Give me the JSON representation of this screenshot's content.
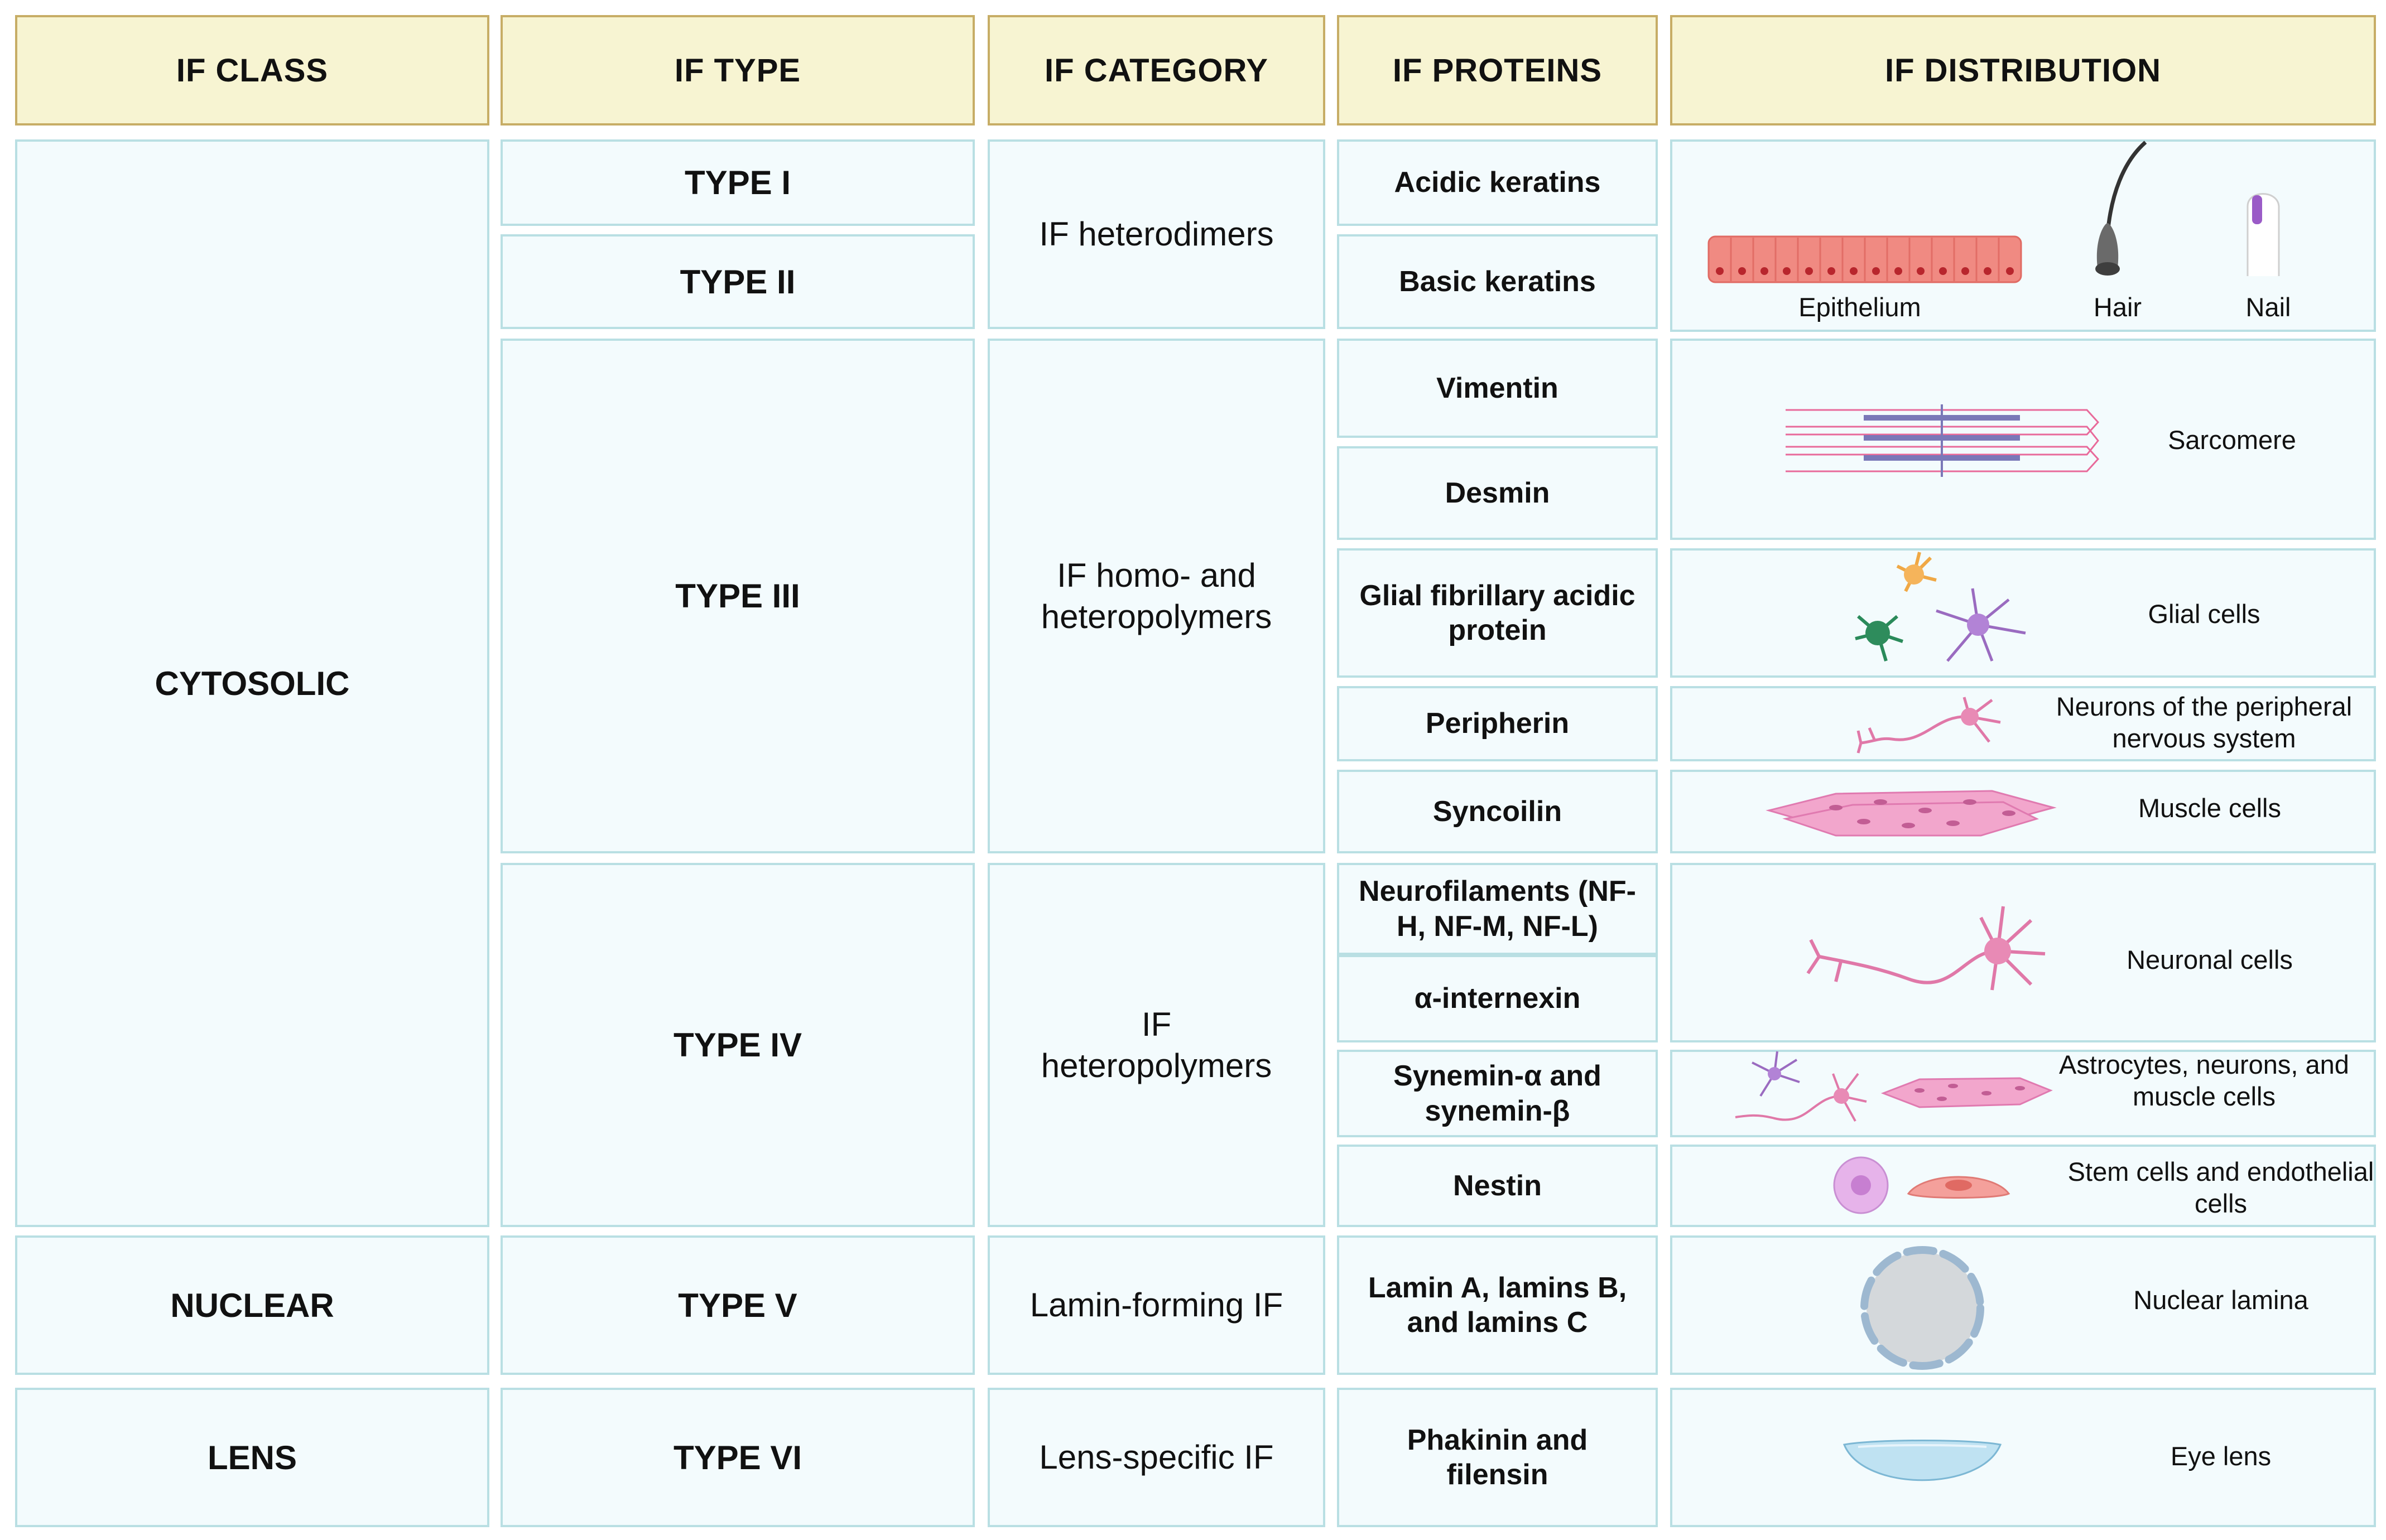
{
  "headers": {
    "if_class": "IF CLASS",
    "if_type": "IF TYPE",
    "if_category": "IF CATEGORY",
    "if_proteins": "IF PROTEINS",
    "if_distribution": "IF DISTRIBUTION"
  },
  "classes": {
    "cytosolic": "CYTOSOLIC",
    "nuclear": "NUCLEAR",
    "lens": "LENS"
  },
  "types": {
    "type_i": "TYPE I",
    "type_ii": "TYPE II",
    "type_iii": "TYPE III",
    "type_iv": "TYPE IV",
    "type_v": "TYPE V",
    "type_vi": "TYPE VI"
  },
  "categories": {
    "heterodimers": "IF heterodimers",
    "homo_hetero": "IF homo- and heteropolymers",
    "heteropolymers": "IF heteropolymers",
    "lamin_forming": "Lamin-forming IF",
    "lens_specific": "Lens-specific IF"
  },
  "proteins": {
    "acidic_keratins": "Acidic keratins",
    "basic_keratins": "Basic keratins",
    "vimentin": "Vimentin",
    "desmin": "Desmin",
    "gfap": "Glial fibrillary acidic protein",
    "peripherin": "Peripherin",
    "syncoilin": "Syncoilin",
    "neurofilaments": "Neurofilaments (NF-H, NF-M, NF-L)",
    "alpha_internexin": "α-internexin",
    "synemin": "Synemin-α and synemin-β",
    "nestin": "Nestin",
    "lamins": "Lamin A, lamins B, and lamins C",
    "phakinin": "Phakinin and filensin"
  },
  "distribution": {
    "epithelium": "Epithelium",
    "hair": "Hair",
    "nail": "Nail",
    "sarcomere": "Sarcomere",
    "glial": "Glial cells",
    "peripheral": "Neurons of the peripheral nervous system",
    "muscle": "Muscle cells",
    "neuronal": "Neuronal cells",
    "astro": "Astrocytes, neurons, and muscle cells",
    "stem": "Stem cells and endothelial cells",
    "lamina": "Nuclear lamina",
    "eye_lens": "Eye lens"
  }
}
